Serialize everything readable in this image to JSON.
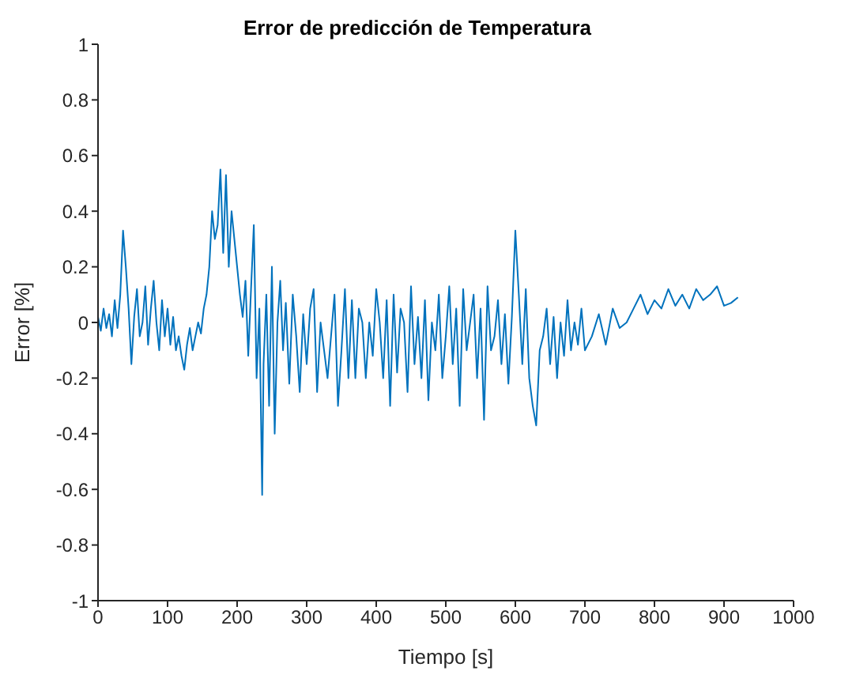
{
  "chart_data": {
    "type": "line",
    "title": "Error de predicción de Temperatura",
    "xlabel": "Tiempo [s]",
    "ylabel": "Error [%]",
    "xlim": [
      0,
      1000
    ],
    "xticks": [
      0,
      100,
      200,
      300,
      400,
      500,
      600,
      700,
      800,
      900,
      1000
    ],
    "ylim": [
      -1,
      1
    ],
    "yticks": [
      -1,
      -0.8,
      -0.6,
      -0.4,
      -0.2,
      0,
      0.2,
      0.4,
      0.6,
      0.8,
      1
    ],
    "grid": false,
    "legend": false,
    "marker": "none",
    "line_style": "solid",
    "series": [
      {
        "color": "#0072bd",
        "x": [
          0,
          4,
          8,
          12,
          16,
          20,
          24,
          28,
          32,
          36,
          40,
          44,
          48,
          52,
          56,
          60,
          64,
          68,
          72,
          76,
          80,
          84,
          88,
          92,
          96,
          100,
          104,
          108,
          112,
          116,
          120,
          124,
          128,
          132,
          136,
          140,
          144,
          148,
          152,
          156,
          160,
          164,
          168,
          172,
          176,
          180,
          184,
          188,
          192,
          196,
          200,
          204,
          208,
          212,
          216,
          220,
          224,
          228,
          232,
          236,
          238,
          242,
          246,
          250,
          254,
          258,
          262,
          266,
          270,
          275,
          280,
          285,
          290,
          295,
          300,
          305,
          310,
          315,
          320,
          325,
          330,
          335,
          340,
          345,
          350,
          355,
          360,
          365,
          370,
          375,
          380,
          385,
          390,
          395,
          400,
          405,
          410,
          415,
          420,
          425,
          430,
          435,
          440,
          445,
          450,
          455,
          460,
          465,
          470,
          475,
          480,
          485,
          490,
          495,
          500,
          505,
          510,
          515,
          520,
          525,
          530,
          535,
          540,
          545,
          550,
          555,
          560,
          565,
          570,
          575,
          580,
          585,
          590,
          595,
          600,
          605,
          610,
          615,
          620,
          625,
          630,
          635,
          640,
          645,
          650,
          655,
          660,
          665,
          670,
          675,
          680,
          685,
          690,
          695,
          700,
          710,
          720,
          730,
          740,
          750,
          760,
          770,
          780,
          790,
          800,
          810,
          820,
          830,
          840,
          850,
          860,
          870,
          880,
          890,
          900,
          910,
          920
        ],
        "values": [
          0.02,
          -0.03,
          0.05,
          -0.02,
          0.03,
          -0.05,
          0.08,
          -0.02,
          0.1,
          0.33,
          0.2,
          0.05,
          -0.15,
          0.02,
          0.12,
          -0.05,
          0.0,
          0.13,
          -0.08,
          0.05,
          0.15,
          0.0,
          -0.1,
          0.08,
          -0.05,
          0.05,
          -0.08,
          0.02,
          -0.1,
          -0.05,
          -0.12,
          -0.17,
          -0.08,
          -0.02,
          -0.1,
          -0.05,
          0.0,
          -0.04,
          0.05,
          0.1,
          0.2,
          0.4,
          0.3,
          0.35,
          0.55,
          0.25,
          0.53,
          0.2,
          0.4,
          0.3,
          0.2,
          0.1,
          0.02,
          0.15,
          -0.12,
          0.12,
          0.35,
          -0.2,
          0.05,
          -0.62,
          -0.15,
          0.1,
          -0.3,
          0.2,
          -0.4,
          0.0,
          0.15,
          -0.1,
          0.07,
          -0.22,
          0.1,
          -0.05,
          -0.25,
          0.03,
          -0.15,
          0.05,
          0.12,
          -0.25,
          0.0,
          -0.1,
          -0.2,
          -0.05,
          0.1,
          -0.3,
          -0.1,
          0.12,
          -0.2,
          0.08,
          -0.2,
          0.05,
          0.0,
          -0.2,
          0.0,
          -0.12,
          0.12,
          0.0,
          -0.2,
          0.08,
          -0.3,
          0.1,
          -0.18,
          0.05,
          0.0,
          -0.25,
          0.13,
          -0.15,
          0.02,
          -0.2,
          0.08,
          -0.28,
          0.0,
          -0.1,
          0.1,
          -0.2,
          -0.05,
          0.13,
          -0.15,
          0.05,
          -0.3,
          0.12,
          -0.1,
          0.0,
          0.1,
          -0.2,
          0.05,
          -0.35,
          0.13,
          -0.1,
          -0.05,
          0.08,
          -0.15,
          0.03,
          -0.22,
          0.02,
          0.33,
          0.1,
          -0.15,
          0.12,
          -0.2,
          -0.3,
          -0.37,
          -0.1,
          -0.05,
          0.05,
          -0.15,
          0.02,
          -0.2,
          0.0,
          -0.12,
          0.08,
          -0.1,
          0.0,
          -0.08,
          0.05,
          -0.1,
          -0.05,
          0.03,
          -0.08,
          0.05,
          -0.02,
          0.0,
          0.05,
          0.1,
          0.03,
          0.08,
          0.05,
          0.12,
          0.06,
          0.1,
          0.05,
          0.12,
          0.08,
          0.1,
          0.13,
          0.06,
          0.07,
          0.09
        ]
      }
    ]
  }
}
